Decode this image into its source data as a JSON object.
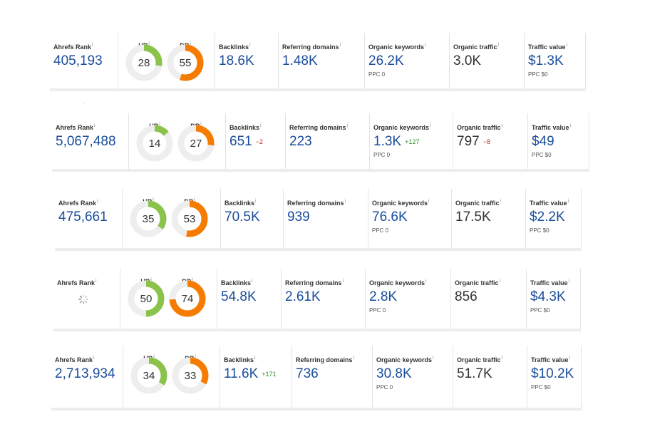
{
  "info_glyph": "i",
  "colors": {
    "ur": "#8bc34a",
    "dr": "#f57c00",
    "track": "#eeeeee",
    "link": "#1a4d9c"
  },
  "labels": {
    "ahrefs_rank": "Ahrefs Rank",
    "ur": "UR",
    "dr": "DR",
    "backlinks": "Backlinks",
    "referring_domains": "Referring domains",
    "organic_keywords": "Organic keywords",
    "organic_traffic": "Organic traffic",
    "traffic_value": "Traffic value"
  },
  "panels": [
    {
      "ahrefs_rank": "405,193",
      "ur": 28,
      "dr": 55,
      "backlinks": "18.6K",
      "backlinks_delta": "",
      "referring_domains": "1.48K",
      "organic_keywords": "26.2K",
      "organic_keywords_delta": "",
      "keywords_ppc": "PPC 0",
      "organic_traffic": "3.0K",
      "organic_traffic_delta": "",
      "traffic_value": "$1.3K",
      "value_ppc": "PPC $0"
    },
    {
      "ahrefs_rank": "5,067,488",
      "ur": 14,
      "dr": 27,
      "backlinks": "651",
      "backlinks_delta": "−2",
      "referring_domains": "223",
      "organic_keywords": "1.3K",
      "organic_keywords_delta": "+127",
      "keywords_ppc": "PPC 0",
      "organic_traffic": "797",
      "organic_traffic_delta": "−8",
      "traffic_value": "$49",
      "value_ppc": "PPC $0"
    },
    {
      "ahrefs_rank": "475,661",
      "ur": 35,
      "dr": 53,
      "backlinks": "70.5K",
      "backlinks_delta": "",
      "referring_domains": "939",
      "organic_keywords": "76.6K",
      "organic_keywords_delta": "",
      "keywords_ppc": "PPC 0",
      "organic_traffic": "17.5K",
      "organic_traffic_delta": "",
      "traffic_value": "$2.2K",
      "value_ppc": "PPC $0"
    },
    {
      "ahrefs_rank": "",
      "ur": 50,
      "dr": 74,
      "backlinks": "54.8K",
      "backlinks_delta": "",
      "referring_domains": "2.61K",
      "organic_keywords": "2.8K",
      "organic_keywords_delta": "",
      "keywords_ppc": "PPC 0",
      "organic_traffic": "856",
      "organic_traffic_delta": "",
      "traffic_value": "$4.3K",
      "value_ppc": "PPC $0"
    },
    {
      "ahrefs_rank": "2,713,934",
      "ur": 34,
      "dr": 33,
      "backlinks": "11.6K",
      "backlinks_delta": "+171",
      "referring_domains": "736",
      "organic_keywords": "30.8K",
      "organic_keywords_delta": "",
      "keywords_ppc": "PPC 0",
      "organic_traffic": "51.7K",
      "organic_traffic_delta": "",
      "traffic_value": "$10.2K",
      "value_ppc": "PPC $0"
    }
  ]
}
